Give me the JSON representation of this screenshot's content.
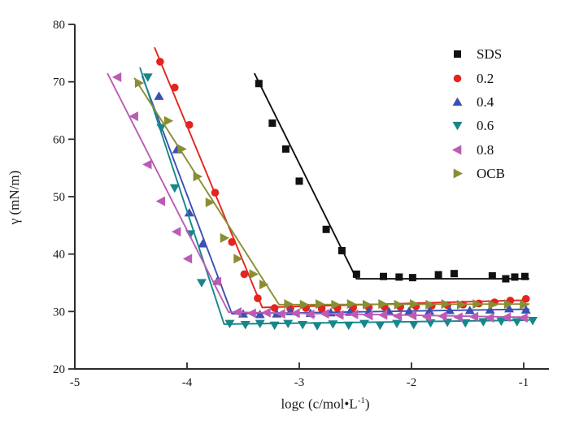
{
  "figure_title": "",
  "chart_data": {
    "type": "scatter",
    "title": "",
    "xlabel": "logc (c/mol•L⁻¹)",
    "xlabel_parts": {
      "main": "logc (c/mol•L",
      "sup": "-1",
      "close": ")"
    },
    "ylabel": "γ (mN/m)",
    "xlim": [
      -5,
      -0.78
    ],
    "ylim": [
      20,
      80
    ],
    "x_ticks": [
      -5,
      -4,
      -3,
      -2,
      -1
    ],
    "x_tick_labels": [
      "-5",
      "-4",
      "-3",
      "-2",
      "-1"
    ],
    "y_ticks": [
      20,
      30,
      40,
      50,
      60,
      70,
      80
    ],
    "y_tick_labels": [
      "20",
      "30",
      "40",
      "50",
      "60",
      "70",
      "80"
    ],
    "grid": false,
    "legend_position": "top-right",
    "axis_color": "#2b2b2b",
    "series": [
      {
        "name": "SDS",
        "color": "#111111",
        "marker": "square",
        "points": [
          [
            -3.36,
            69.7
          ],
          [
            -3.24,
            62.8
          ],
          [
            -3.12,
            58.3
          ],
          [
            -3.0,
            52.7
          ],
          [
            -2.76,
            44.3
          ],
          [
            -2.62,
            40.6
          ],
          [
            -2.49,
            36.5
          ],
          [
            -2.25,
            36.1
          ],
          [
            -2.11,
            36.0
          ],
          [
            -1.99,
            35.9
          ],
          [
            -1.76,
            36.4
          ],
          [
            -1.62,
            36.6
          ],
          [
            -1.28,
            36.2
          ],
          [
            -1.16,
            35.7
          ],
          [
            -1.08,
            36.0
          ],
          [
            -0.99,
            36.1
          ]
        ],
        "fit_line": [
          [
            -3.4,
            71.5
          ],
          [
            -2.49,
            35.7
          ],
          [
            -0.95,
            35.7
          ]
        ]
      },
      {
        "name": "0.2",
        "color": "#e3251f",
        "marker": "circle",
        "points": [
          [
            -4.24,
            73.5
          ],
          [
            -4.11,
            69.0
          ],
          [
            -3.98,
            62.5
          ],
          [
            -3.75,
            50.7
          ],
          [
            -3.6,
            42.1
          ],
          [
            -3.49,
            36.5
          ],
          [
            -3.37,
            32.3
          ],
          [
            -3.22,
            30.6
          ],
          [
            -3.08,
            30.5
          ],
          [
            -2.94,
            30.6
          ],
          [
            -2.8,
            30.5
          ],
          [
            -2.66,
            30.6
          ],
          [
            -2.52,
            30.7
          ],
          [
            -2.38,
            30.7
          ],
          [
            -2.24,
            30.8
          ],
          [
            -2.1,
            30.8
          ],
          [
            -1.96,
            30.9
          ],
          [
            -1.82,
            31.0
          ],
          [
            -1.68,
            31.1
          ],
          [
            -1.54,
            31.2
          ],
          [
            -1.4,
            31.4
          ],
          [
            -1.26,
            31.6
          ],
          [
            -1.12,
            31.9
          ],
          [
            -0.98,
            32.2
          ]
        ],
        "fit_line": [
          [
            -4.29,
            76.0
          ],
          [
            -3.33,
            30.7
          ],
          [
            -0.95,
            32.0
          ]
        ]
      },
      {
        "name": "0.4",
        "color": "#3a50b4",
        "marker": "triangle-up",
        "points": [
          [
            -4.25,
            67.5
          ],
          [
            -4.09,
            58.2
          ],
          [
            -3.98,
            47.2
          ],
          [
            -3.86,
            41.8
          ],
          [
            -3.73,
            35.3
          ],
          [
            -3.5,
            29.6
          ],
          [
            -3.35,
            29.5
          ],
          [
            -3.2,
            29.6
          ],
          [
            -3.08,
            30.0
          ],
          [
            -2.9,
            29.7
          ],
          [
            -2.72,
            29.8
          ],
          [
            -2.55,
            29.9
          ],
          [
            -2.38,
            30.0
          ],
          [
            -2.2,
            30.0
          ],
          [
            -2.02,
            30.1
          ],
          [
            -1.84,
            30.1
          ],
          [
            -1.66,
            30.2
          ],
          [
            -1.48,
            30.2
          ],
          [
            -1.3,
            30.3
          ],
          [
            -1.13,
            30.5
          ],
          [
            -0.98,
            30.3
          ]
        ],
        "fit_line": [
          [
            -4.4,
            71.0
          ],
          [
            -3.6,
            29.6
          ],
          [
            -0.95,
            30.4
          ]
        ]
      },
      {
        "name": "0.6",
        "color": "#17868c",
        "marker": "triangle-down",
        "points": [
          [
            -4.35,
            70.8
          ],
          [
            -4.23,
            62.0
          ],
          [
            -4.11,
            51.5
          ],
          [
            -3.97,
            43.5
          ],
          [
            -3.87,
            35.0
          ],
          [
            -3.62,
            27.9
          ],
          [
            -3.48,
            27.7
          ],
          [
            -3.35,
            27.9
          ],
          [
            -3.22,
            27.6
          ],
          [
            -3.1,
            27.9
          ],
          [
            -2.97,
            27.7
          ],
          [
            -2.84,
            27.5
          ],
          [
            -2.7,
            27.8
          ],
          [
            -2.56,
            27.6
          ],
          [
            -2.42,
            27.9
          ],
          [
            -2.28,
            27.6
          ],
          [
            -2.13,
            27.9
          ],
          [
            -1.98,
            27.7
          ],
          [
            -1.83,
            28.0
          ],
          [
            -1.68,
            28.1
          ],
          [
            -1.52,
            28.0
          ],
          [
            -1.36,
            28.2
          ],
          [
            -1.2,
            28.3
          ],
          [
            -1.06,
            28.2
          ],
          [
            -0.92,
            28.4
          ]
        ],
        "fit_line": [
          [
            -4.42,
            72.5
          ],
          [
            -3.67,
            27.8
          ],
          [
            -0.95,
            28.5
          ]
        ]
      },
      {
        "name": "0.8",
        "color": "#bb5cb4",
        "marker": "triangle-left",
        "points": [
          [
            -4.62,
            70.8
          ],
          [
            -4.47,
            64.0
          ],
          [
            -4.35,
            55.6
          ],
          [
            -4.23,
            49.2
          ],
          [
            -4.09,
            43.9
          ],
          [
            -3.99,
            39.2
          ],
          [
            -3.73,
            35.2
          ],
          [
            -3.55,
            29.9
          ],
          [
            -3.42,
            29.7
          ],
          [
            -3.29,
            29.8
          ],
          [
            -3.16,
            29.6
          ],
          [
            -3.03,
            29.7
          ],
          [
            -2.9,
            29.5
          ],
          [
            -2.77,
            29.6
          ],
          [
            -2.64,
            29.4
          ],
          [
            -2.51,
            29.5
          ],
          [
            -2.38,
            29.3
          ],
          [
            -2.25,
            29.4
          ],
          [
            -2.12,
            29.2
          ],
          [
            -1.99,
            29.3
          ],
          [
            -1.86,
            29.1
          ],
          [
            -1.72,
            29.2
          ],
          [
            -1.58,
            29.0
          ],
          [
            -1.44,
            29.1
          ],
          [
            -1.3,
            28.9
          ],
          [
            -1.15,
            29.0
          ],
          [
            -1.0,
            28.9
          ]
        ],
        "fit_line": [
          [
            -4.71,
            71.5
          ],
          [
            -3.63,
            29.9
          ],
          [
            -0.95,
            29.0
          ]
        ]
      },
      {
        "name": "OCB",
        "color": "#8b8d33",
        "marker": "triangle-right",
        "points": [
          [
            -4.43,
            69.8
          ],
          [
            -4.17,
            63.2
          ],
          [
            -4.05,
            58.3
          ],
          [
            -3.91,
            53.5
          ],
          [
            -3.8,
            49.0
          ],
          [
            -3.67,
            42.8
          ],
          [
            -3.55,
            39.2
          ],
          [
            -3.41,
            36.5
          ],
          [
            -3.32,
            34.7
          ],
          [
            -3.1,
            31.3
          ],
          [
            -2.96,
            31.2
          ],
          [
            -2.82,
            31.3
          ],
          [
            -2.68,
            31.2
          ],
          [
            -2.54,
            31.3
          ],
          [
            -2.4,
            31.2
          ],
          [
            -2.26,
            31.3
          ],
          [
            -2.12,
            31.2
          ],
          [
            -1.98,
            31.3
          ],
          [
            -1.84,
            31.2
          ],
          [
            -1.7,
            31.3
          ],
          [
            -1.56,
            31.2
          ],
          [
            -1.42,
            31.3
          ],
          [
            -1.28,
            31.2
          ],
          [
            -1.14,
            31.3
          ],
          [
            -1.0,
            31.2
          ]
        ],
        "fit_line": [
          [
            -4.47,
            70.7
          ],
          [
            -3.18,
            31.2
          ],
          [
            -0.95,
            31.3
          ]
        ]
      }
    ],
    "legend_items": [
      "SDS",
      "0.2",
      "0.4",
      "0.6",
      "0.8",
      "OCB"
    ]
  }
}
